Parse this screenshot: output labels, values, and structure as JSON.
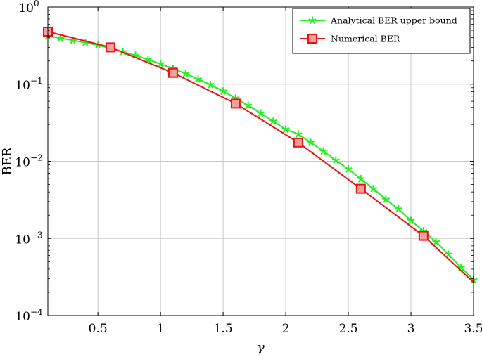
{
  "chart_data": {
    "type": "line",
    "title": "",
    "xlabel": "γ",
    "ylabel": "BER",
    "xlim": [
      0.1,
      3.5
    ],
    "ylim": [
      0.0001,
      1
    ],
    "yscale": "log",
    "grid": true,
    "legend_position": "top-right",
    "x_ticks": [
      "0.5",
      "1",
      "1.5",
      "2",
      "2.5",
      "3",
      "3.5"
    ],
    "y_ticks": [
      {
        "base": "10",
        "exp": "0"
      },
      {
        "base": "10",
        "exp": "−1"
      },
      {
        "base": "10",
        "exp": "−2"
      },
      {
        "base": "10",
        "exp": "−3"
      },
      {
        "base": "10",
        "exp": "−4"
      }
    ],
    "series": [
      {
        "name": "Analytical BER upper bound",
        "color": "#22ee22",
        "marker": "star",
        "x": [
          0.1,
          0.2,
          0.3,
          0.4,
          0.5,
          0.6,
          0.7,
          0.8,
          0.9,
          1.0,
          1.1,
          1.2,
          1.3,
          1.4,
          1.5,
          1.6,
          1.7,
          1.8,
          1.9,
          2.0,
          2.1,
          2.2,
          2.3,
          2.4,
          2.5,
          2.6,
          2.7,
          2.8,
          2.9,
          3.0,
          3.1,
          3.2,
          3.3,
          3.4,
          3.5
        ],
        "y": [
          0.42,
          0.395,
          0.37,
          0.345,
          0.32,
          0.29,
          0.262,
          0.235,
          0.208,
          0.183,
          0.159,
          0.137,
          0.116,
          0.098,
          0.081,
          0.066,
          0.053,
          0.042,
          0.033,
          0.026,
          0.0225,
          0.0175,
          0.0135,
          0.0103,
          0.0079,
          0.0059,
          0.0044,
          0.0032,
          0.0024,
          0.0017,
          0.00125,
          0.0009,
          0.00062,
          0.00042,
          0.00029
        ]
      },
      {
        "name": "Numerical BER",
        "color": "#ee1111",
        "marker": "square",
        "x": [
          0.1,
          0.6,
          1.1,
          1.6,
          2.1,
          2.6,
          3.1,
          3.5
        ],
        "y": [
          0.48,
          0.3,
          0.14,
          0.056,
          0.0175,
          0.0044,
          0.00108,
          0.00027
        ],
        "marker_x": [
          0.1,
          0.6,
          1.1,
          1.6,
          2.1,
          2.6,
          3.1
        ]
      }
    ]
  }
}
